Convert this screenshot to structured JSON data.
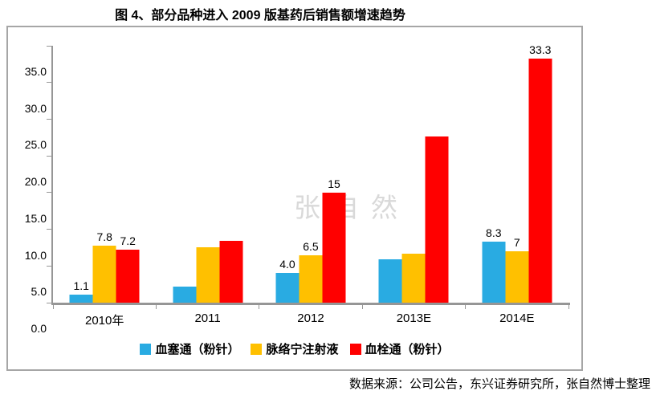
{
  "title": "图 4、部分品种进入 2009 版基药后销售额增速趋势",
  "footer": "数据来源：公司公告，东兴证券研究所，张自然博士整理",
  "watermark": "张自然",
  "colors": {
    "series_blue": "#29abe2",
    "series_yellow": "#ffc000",
    "series_red": "#ff0000",
    "axis": "#969696",
    "box_border": "#a6a6a6",
    "watermark": "#d9d9d9",
    "text": "#000000"
  },
  "chart_data": {
    "type": "bar",
    "title": "图 4、部分品种进入 2009 版基药后销售额增速趋势",
    "categories": [
      "2010年",
      "2011",
      "2012",
      "2013E",
      "2014E"
    ],
    "series": [
      {
        "name": "血塞通（粉针）",
        "color": "#29abe2",
        "values": [
          1.1,
          2.2,
          4.0,
          5.9,
          8.3
        ],
        "labels": [
          "1.1",
          "",
          "4.0",
          "",
          "8.3"
        ]
      },
      {
        "name": "脉络宁注射液",
        "color": "#ffc000",
        "values": [
          7.8,
          7.5,
          6.5,
          6.7,
          7.0
        ],
        "labels": [
          "7.8",
          "",
          "6.5",
          "",
          "7"
        ]
      },
      {
        "name": "血栓通（粉针）",
        "color": "#ff0000",
        "values": [
          7.2,
          8.4,
          15.0,
          22.6,
          33.3
        ],
        "labels": [
          "7.2",
          "",
          "15",
          "",
          "33.3"
        ]
      }
    ],
    "xlabel": "",
    "ylabel": "",
    "ylim": [
      0,
      35
    ],
    "ytick_values": [
      0,
      5,
      10,
      15,
      20,
      25,
      30,
      35
    ],
    "ytick_labels": [
      "0.0",
      "5.0",
      "10.0",
      "15.0",
      "20.0",
      "25.0",
      "30.0",
      "35.0"
    ],
    "grid": false,
    "legend_position": "bottom"
  }
}
